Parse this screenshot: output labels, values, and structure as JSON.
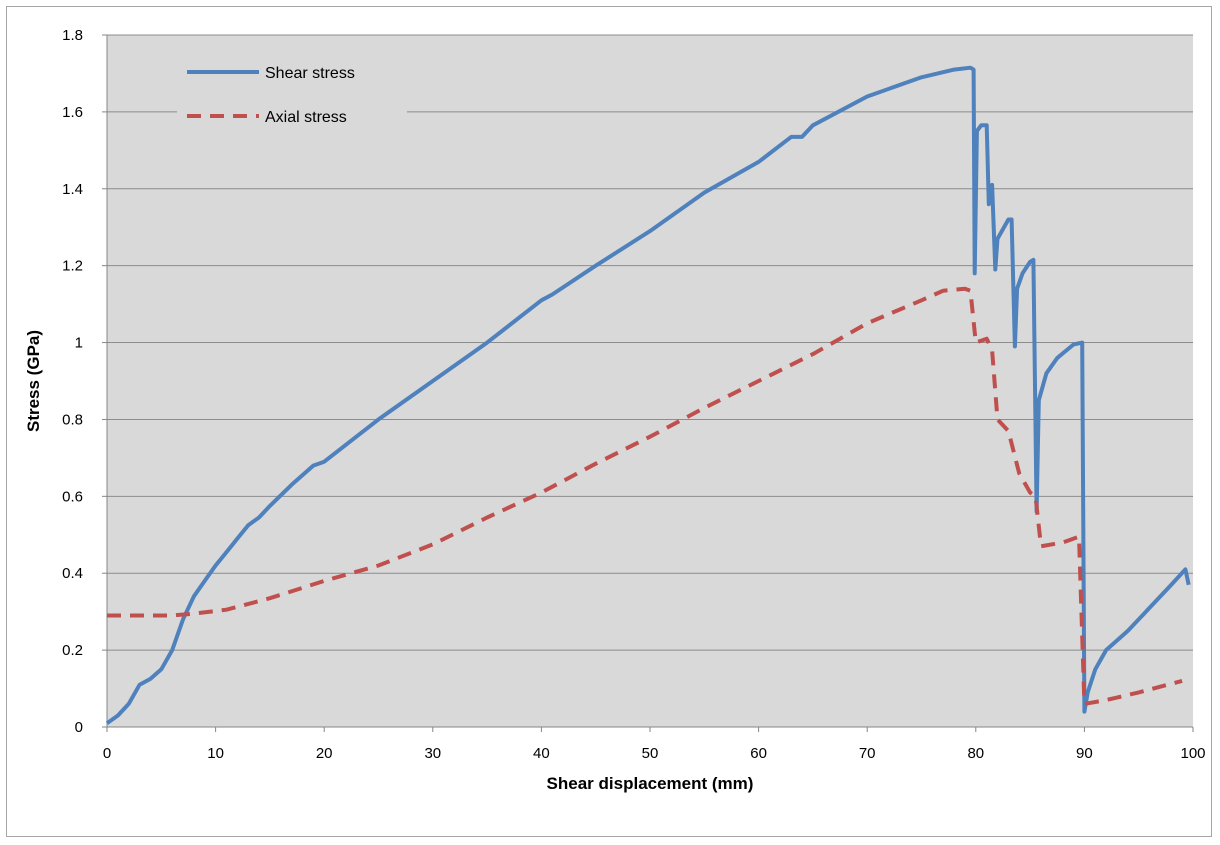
{
  "chart_data": {
    "type": "line",
    "title": "",
    "xlabel": "Shear displacement (mm)",
    "ylabel": "Stress (GPa)",
    "xlim": [
      0,
      100
    ],
    "ylim": [
      0,
      1.8
    ],
    "x_ticks": [
      0,
      10,
      20,
      30,
      40,
      50,
      60,
      70,
      80,
      90,
      100
    ],
    "x_tick_labels": [
      "0",
      "10",
      "20",
      "30",
      "40",
      "50",
      "60",
      "70",
      "80",
      "90",
      "100"
    ],
    "y_ticks": [
      0,
      0.2,
      0.4,
      0.6,
      0.8,
      1.0,
      1.2,
      1.4,
      1.6,
      1.8
    ],
    "y_tick_labels": [
      "0",
      "0.2",
      "0.4",
      "0.6",
      "0.8",
      "1",
      "1.2",
      "1.4",
      "1.6",
      "1.8"
    ],
    "grid": "horizontal",
    "plot_background": "#d9d9d9",
    "legend_position": "top-left",
    "series": [
      {
        "name": "Shear stress",
        "color": "#4f81bd",
        "style": "solid",
        "points": [
          [
            0,
            0.01
          ],
          [
            1,
            0.03
          ],
          [
            2,
            0.06
          ],
          [
            3,
            0.11
          ],
          [
            4,
            0.125
          ],
          [
            5,
            0.15
          ],
          [
            6,
            0.2
          ],
          [
            7,
            0.28
          ],
          [
            8,
            0.34
          ],
          [
            9,
            0.38
          ],
          [
            10,
            0.42
          ],
          [
            11,
            0.455
          ],
          [
            12,
            0.49
          ],
          [
            13,
            0.525
          ],
          [
            14,
            0.545
          ],
          [
            15,
            0.575
          ],
          [
            17,
            0.63
          ],
          [
            19,
            0.68
          ],
          [
            20,
            0.69
          ],
          [
            25,
            0.8
          ],
          [
            30,
            0.9
          ],
          [
            35,
            1.0
          ],
          [
            40,
            1.11
          ],
          [
            41,
            1.125
          ],
          [
            45,
            1.2
          ],
          [
            50,
            1.29
          ],
          [
            55,
            1.39
          ],
          [
            60,
            1.47
          ],
          [
            63,
            1.535
          ],
          [
            64,
            1.535
          ],
          [
            65,
            1.565
          ],
          [
            70,
            1.64
          ],
          [
            75,
            1.69
          ],
          [
            78,
            1.71
          ],
          [
            79.5,
            1.715
          ],
          [
            79.8,
            1.71
          ],
          [
            79.9,
            1.18
          ],
          [
            80.1,
            1.55
          ],
          [
            80.5,
            1.565
          ],
          [
            81,
            1.565
          ],
          [
            81.2,
            1.36
          ],
          [
            81.5,
            1.41
          ],
          [
            81.8,
            1.19
          ],
          [
            82,
            1.27
          ],
          [
            83,
            1.32
          ],
          [
            83.3,
            1.32
          ],
          [
            83.6,
            0.99
          ],
          [
            83.8,
            1.14
          ],
          [
            84.3,
            1.18
          ],
          [
            85,
            1.21
          ],
          [
            85.3,
            1.215
          ],
          [
            85.6,
            0.56
          ],
          [
            85.8,
            0.85
          ],
          [
            86.5,
            0.92
          ],
          [
            87.5,
            0.96
          ],
          [
            89,
            0.995
          ],
          [
            89.8,
            1.0
          ],
          [
            90,
            0.04
          ],
          [
            90.3,
            0.09
          ],
          [
            91,
            0.15
          ],
          [
            92,
            0.2
          ],
          [
            94,
            0.25
          ],
          [
            96,
            0.31
          ],
          [
            98,
            0.37
          ],
          [
            99.3,
            0.41
          ],
          [
            99.6,
            0.37
          ]
        ]
      },
      {
        "name": "Axial stress",
        "color": "#c0504d",
        "style": "dashed",
        "points": [
          [
            0,
            0.29
          ],
          [
            3,
            0.29
          ],
          [
            6,
            0.29
          ],
          [
            8,
            0.295
          ],
          [
            11,
            0.305
          ],
          [
            15,
            0.335
          ],
          [
            20,
            0.38
          ],
          [
            25,
            0.42
          ],
          [
            30,
            0.475
          ],
          [
            35,
            0.545
          ],
          [
            40,
            0.61
          ],
          [
            45,
            0.685
          ],
          [
            50,
            0.755
          ],
          [
            55,
            0.83
          ],
          [
            60,
            0.9
          ],
          [
            65,
            0.97
          ],
          [
            70,
            1.05
          ],
          [
            75,
            1.11
          ],
          [
            77,
            1.135
          ],
          [
            79,
            1.14
          ],
          [
            79.5,
            1.135
          ],
          [
            80,
            1.0
          ],
          [
            81,
            1.01
          ],
          [
            81.5,
            0.98
          ],
          [
            82,
            0.8
          ],
          [
            83,
            0.77
          ],
          [
            84,
            0.66
          ],
          [
            85,
            0.61
          ],
          [
            85.5,
            0.6
          ],
          [
            86,
            0.47
          ],
          [
            88,
            0.48
          ],
          [
            89.5,
            0.495
          ],
          [
            90,
            0.06
          ],
          [
            92,
            0.07
          ],
          [
            95,
            0.09
          ],
          [
            99,
            0.12
          ]
        ]
      }
    ]
  }
}
